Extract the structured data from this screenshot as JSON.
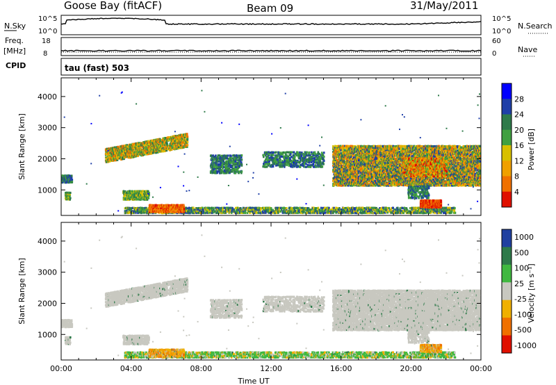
{
  "header": {
    "station": "Goose Bay (fitACF)",
    "beam": "Beam 09",
    "date": "31/May/2011"
  },
  "status_panels": {
    "nsky_label": "N.Sky",
    "nsky_ticks": [
      "10^5",
      "10^0"
    ],
    "nsearch_label": "N.Search",
    "nsearch_ticks": [
      "10^5",
      "10^0"
    ],
    "freq_label": "Freq.",
    "freq_unit": "[MHz]",
    "freq_ticks": [
      "18",
      "8"
    ],
    "nave_label": "Nave",
    "nave_ticks": [
      "60",
      "0"
    ],
    "cpid_label": "CPID",
    "cpid_text": "tau (fast) 503"
  },
  "chart_data": [
    {
      "type": "heatmap",
      "name": "power",
      "ylabel": "Slant Range [km]",
      "ylim": [
        180,
        4600
      ],
      "yticks": [
        "1000",
        "2000",
        "3000",
        "4000"
      ],
      "xlim": [
        0,
        24
      ],
      "colorbar": {
        "label": "Power [dB]",
        "ticks": [
          "4",
          "8",
          "12",
          "16",
          "20",
          "24",
          "28"
        ],
        "colors": [
          "#0000ff",
          "#1f3fa8",
          "#2e7a4a",
          "#40a040",
          "#d8c000",
          "#f0a000",
          "#f07000",
          "#e01000"
        ]
      }
    },
    {
      "type": "heatmap",
      "name": "velocity",
      "ylabel": "Slant Range [km]",
      "ylim": [
        180,
        4600
      ],
      "yticks": [
        "1000",
        "2000",
        "3000",
        "4000"
      ],
      "xlim": [
        0,
        24
      ],
      "xlabel": "Time UT",
      "xticks": [
        "00:00",
        "04:00",
        "08:00",
        "12:00",
        "16:00",
        "20:00",
        "00:00"
      ],
      "colorbar": {
        "label": "Velocity [m s⁻¹]",
        "ticks": [
          "1000",
          "500",
          "100",
          "25",
          "-25",
          "-100",
          "-500",
          "-1000"
        ],
        "colors": [
          "#2040a0",
          "#2e7a4a",
          "#40b840",
          "#c8c8c0",
          "#f0b000",
          "#f07000",
          "#e01000"
        ]
      }
    }
  ]
}
